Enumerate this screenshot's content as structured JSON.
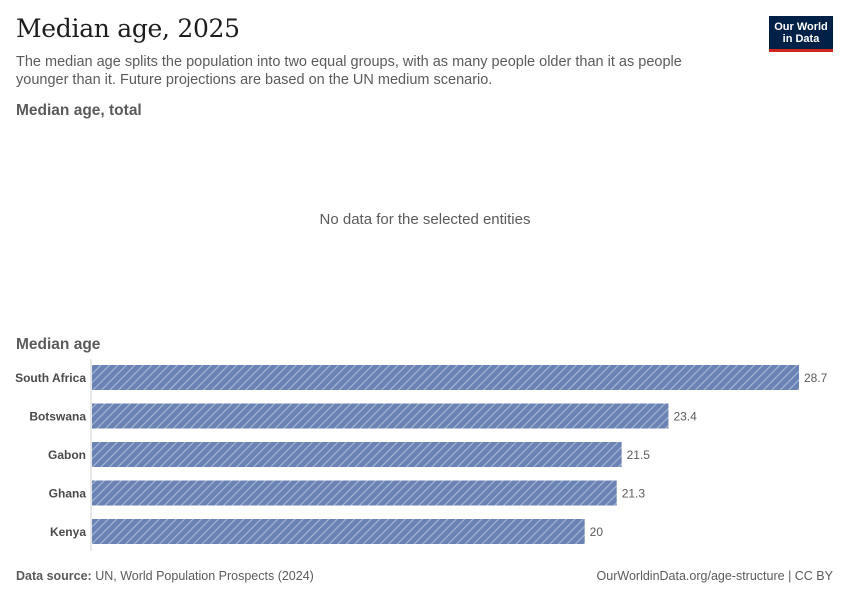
{
  "header": {
    "title": "Median age, 2025",
    "subtitle": "The median age splits the population into two equal groups, with as many people older than it as people younger than it. Future projections are based on the UN medium scenario.",
    "logo_line1": "Our World",
    "logo_line2": "in Data"
  },
  "panel_total": {
    "label": "Median age, total",
    "message": "No data for the selected entities"
  },
  "chart_data": {
    "type": "bar",
    "orientation": "horizontal",
    "title": "Median age",
    "categories": [
      "South Africa",
      "Botswana",
      "Gabon",
      "Ghana",
      "Kenya"
    ],
    "values": [
      28.7,
      23.4,
      21.5,
      21.3,
      20
    ],
    "value_labels": [
      "28.7",
      "23.4",
      "21.5",
      "21.3",
      "20"
    ],
    "xlim": [
      0,
      28.7
    ],
    "bar_color": "#6b83b4",
    "bar_pattern": "diagonal-hatch"
  },
  "footer": {
    "source_label": "Data source:",
    "source_text": " UN, World Population Prospects (2024)",
    "url_license": "OurWorldinData.org/age-structure | CC BY"
  }
}
